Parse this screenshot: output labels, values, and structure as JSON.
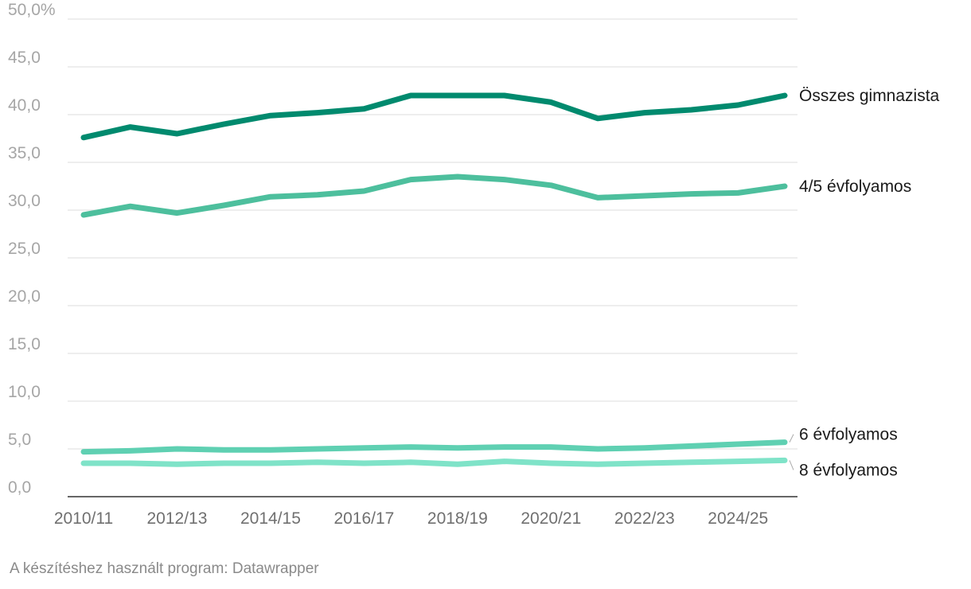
{
  "chart_data": {
    "type": "line",
    "title": "",
    "xlabel": "",
    "ylabel": "",
    "ylim": [
      0,
      50
    ],
    "yticks": [
      0,
      5,
      10,
      15,
      20,
      25,
      30,
      35,
      40,
      45,
      50
    ],
    "ytick_labels": [
      "0,0",
      "5,0",
      "10,0",
      "15,0",
      "20,0",
      "25,0",
      "30,0",
      "35,0",
      "40,0",
      "45,0",
      "50,0%"
    ],
    "x": [
      "2010/11",
      "2011/12",
      "2012/13",
      "2013/14",
      "2014/15",
      "2015/16",
      "2016/17",
      "2017/18",
      "2018/19",
      "2019/20",
      "2020/21",
      "2021/22",
      "2022/23",
      "2023/24",
      "2024/25",
      "2025/26"
    ],
    "xtick_labels": [
      "2010/11",
      "2012/13",
      "2014/15",
      "2016/17",
      "2018/19",
      "2020/21",
      "2022/23",
      "2024/25"
    ],
    "grid": true,
    "series": [
      {
        "name": "Összes gimnazista",
        "color": "#008a6e",
        "values": [
          37.6,
          38.7,
          38.0,
          39.0,
          39.9,
          40.2,
          40.6,
          42.0,
          42.0,
          42.0,
          41.3,
          39.6,
          40.2,
          40.5,
          41.0,
          42.0
        ]
      },
      {
        "name": "4/5 évfolyamos",
        "color": "#4dbf9d",
        "values": [
          29.5,
          30.4,
          29.7,
          30.5,
          31.4,
          31.6,
          32.0,
          33.2,
          33.5,
          33.2,
          32.6,
          31.3,
          31.5,
          31.7,
          31.8,
          32.5
        ]
      },
      {
        "name": "6 évfolyamos",
        "color": "#5fd0b2",
        "values": [
          4.7,
          4.8,
          5.0,
          4.9,
          4.9,
          5.0,
          5.1,
          5.2,
          5.1,
          5.2,
          5.2,
          5.0,
          5.1,
          5.3,
          5.5,
          5.7
        ]
      },
      {
        "name": "8 évfolyamos",
        "color": "#7fe3c8",
        "values": [
          3.5,
          3.5,
          3.4,
          3.5,
          3.5,
          3.6,
          3.5,
          3.6,
          3.4,
          3.7,
          3.5,
          3.4,
          3.5,
          3.6,
          3.7,
          3.8
        ]
      }
    ]
  },
  "footer": "A készítéshez használt program: Datawrapper"
}
